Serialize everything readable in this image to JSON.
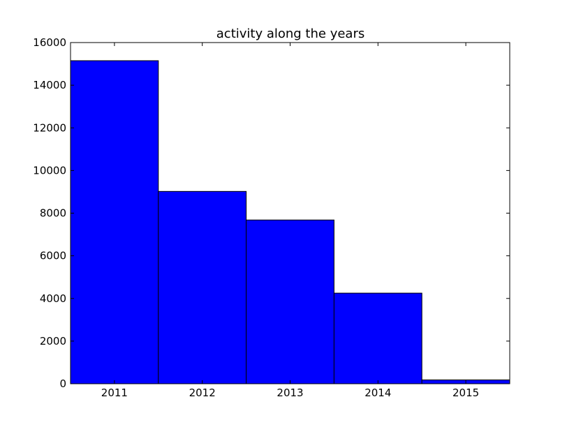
{
  "chart_data": {
    "type": "bar",
    "title": "activity along the years",
    "xlabel": "",
    "ylabel": "",
    "categories": [
      "2011",
      "2012",
      "2013",
      "2014",
      "2015"
    ],
    "values": [
      15150,
      9020,
      7680,
      4250,
      180
    ],
    "ylim": [
      0,
      16000
    ],
    "yticks": [
      "0",
      "2000",
      "4000",
      "6000",
      "8000",
      "10000",
      "12000",
      "14000",
      "16000"
    ],
    "grid": false,
    "legend": "none",
    "colors": {
      "bar_fill": "#0000ff",
      "bar_edge": "#000000",
      "background": "#ffffff"
    }
  }
}
